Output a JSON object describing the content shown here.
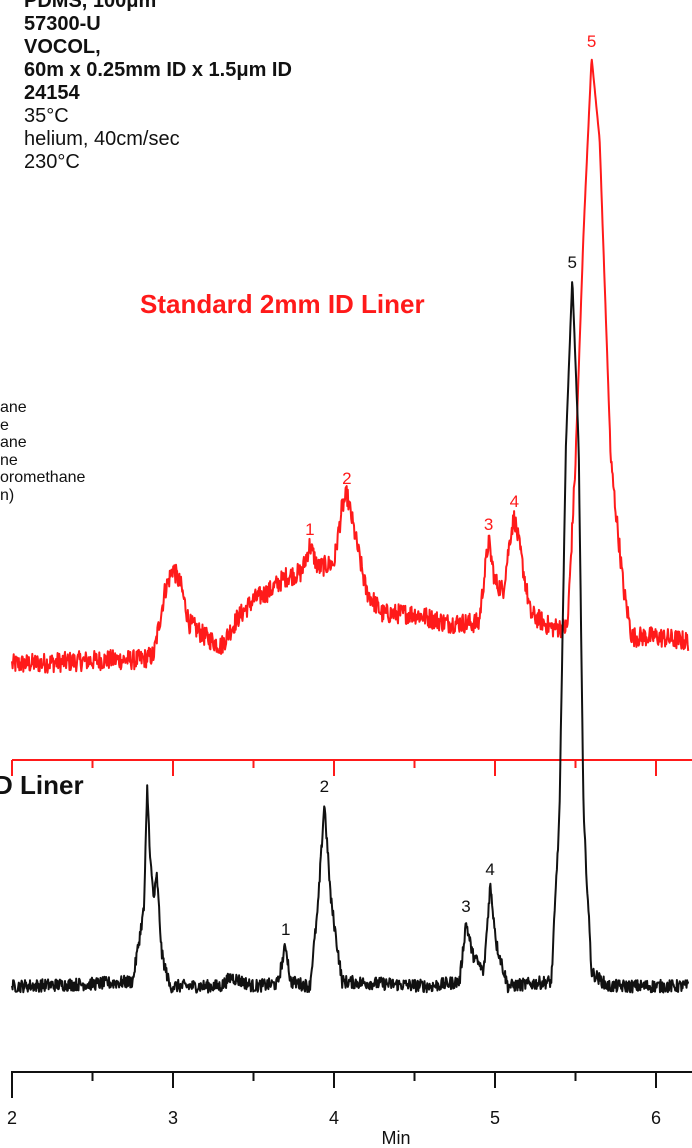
{
  "header": {
    "line0": "PDMS, 100μm",
    "line1": "57300-U",
    "line2": "VOCOL,",
    "line3": "60m x 0.25mm ID x 1.5μm ID",
    "line4": "24154",
    "line5": "35°C",
    "line6": "helium, 40cm/sec",
    "line7": "230°C"
  },
  "legend": {
    "line1": "ane",
    "line2": "e",
    "line3": "ane",
    "line4": "ne",
    "line5": "oromethane",
    "line6": "n)"
  },
  "labels": {
    "red_trace": "Standard 2mm ID Liner",
    "black_trace": "D Liner"
  },
  "colors": {
    "red": "#ff1a1a",
    "black": "#111111"
  },
  "chart_data": {
    "type": "line",
    "xlabel": "Min",
    "ylabel": "",
    "xlim": [
      2,
      6.2
    ],
    "x_ticks": [
      2,
      3,
      4,
      5,
      6
    ],
    "series": [
      {
        "color": "#ff1a1a",
        "points": [
          [
            2.0,
            0.06
          ],
          [
            2.3,
            0.065
          ],
          [
            2.6,
            0.07
          ],
          [
            2.8,
            0.07
          ],
          [
            2.88,
            0.08
          ],
          [
            2.95,
            0.22
          ],
          [
            3.0,
            0.27
          ],
          [
            3.05,
            0.23
          ],
          [
            3.1,
            0.15
          ],
          [
            3.2,
            0.12
          ],
          [
            3.3,
            0.1
          ],
          [
            3.4,
            0.16
          ],
          [
            3.5,
            0.2
          ],
          [
            3.6,
            0.22
          ],
          [
            3.7,
            0.25
          ],
          [
            3.8,
            0.26
          ],
          [
            3.85,
            0.32
          ],
          [
            3.9,
            0.27
          ],
          [
            4.0,
            0.28
          ],
          [
            4.05,
            0.4
          ],
          [
            4.08,
            0.43
          ],
          [
            4.12,
            0.36
          ],
          [
            4.2,
            0.22
          ],
          [
            4.3,
            0.17
          ],
          [
            4.5,
            0.17
          ],
          [
            4.7,
            0.15
          ],
          [
            4.9,
            0.15
          ],
          [
            4.96,
            0.33
          ],
          [
            5.0,
            0.24
          ],
          [
            5.05,
            0.22
          ],
          [
            5.1,
            0.35
          ],
          [
            5.12,
            0.38
          ],
          [
            5.16,
            0.3
          ],
          [
            5.22,
            0.17
          ],
          [
            5.35,
            0.14
          ],
          [
            5.45,
            0.14
          ],
          [
            5.5,
            0.5
          ],
          [
            5.55,
            1.0
          ],
          [
            5.6,
            1.38
          ],
          [
            5.65,
            1.2
          ],
          [
            5.72,
            0.5
          ],
          [
            5.8,
            0.22
          ],
          [
            5.85,
            0.12
          ],
          [
            6.0,
            0.12
          ],
          [
            6.2,
            0.11
          ]
        ]
      },
      {
        "color": "#111111",
        "points": [
          [
            2.0,
            0.03
          ],
          [
            2.5,
            0.035
          ],
          [
            2.75,
            0.04
          ],
          [
            2.82,
            0.2
          ],
          [
            2.84,
            0.46
          ],
          [
            2.86,
            0.3
          ],
          [
            2.88,
            0.22
          ],
          [
            2.9,
            0.27
          ],
          [
            2.93,
            0.1
          ],
          [
            2.98,
            0.03
          ],
          [
            3.3,
            0.03
          ],
          [
            3.36,
            0.05
          ],
          [
            3.5,
            0.03
          ],
          [
            3.65,
            0.035
          ],
          [
            3.7,
            0.12
          ],
          [
            3.73,
            0.04
          ],
          [
            3.85,
            0.03
          ],
          [
            3.9,
            0.2
          ],
          [
            3.94,
            0.43
          ],
          [
            3.98,
            0.22
          ],
          [
            4.05,
            0.04
          ],
          [
            4.6,
            0.03
          ],
          [
            4.78,
            0.04
          ],
          [
            4.82,
            0.17
          ],
          [
            4.86,
            0.1
          ],
          [
            4.93,
            0.06
          ],
          [
            4.97,
            0.25
          ],
          [
            5.01,
            0.12
          ],
          [
            5.08,
            0.03
          ],
          [
            5.35,
            0.04
          ],
          [
            5.4,
            0.4
          ],
          [
            5.44,
            1.2
          ],
          [
            5.48,
            1.57
          ],
          [
            5.52,
            1.2
          ],
          [
            5.55,
            0.4
          ],
          [
            5.6,
            0.06
          ],
          [
            5.7,
            0.03
          ],
          [
            6.2,
            0.03
          ]
        ]
      }
    ],
    "peak_labels": [
      {
        "series": 0,
        "label": "1",
        "x": 3.85,
        "y": 0.32
      },
      {
        "series": 0,
        "label": "2",
        "x": 4.08,
        "y": 0.43
      },
      {
        "series": 0,
        "label": "3",
        "x": 4.96,
        "y": 0.33
      },
      {
        "series": 0,
        "label": "4",
        "x": 5.12,
        "y": 0.38
      },
      {
        "series": 0,
        "label": "5",
        "x": 5.6,
        "y": 1.38
      },
      {
        "series": 1,
        "label": "1",
        "x": 3.7,
        "y": 0.12
      },
      {
        "series": 1,
        "label": "2",
        "x": 3.94,
        "y": 0.43
      },
      {
        "series": 1,
        "label": "3",
        "x": 4.82,
        "y": 0.17
      },
      {
        "series": 1,
        "label": "4",
        "x": 4.97,
        "y": 0.25
      },
      {
        "series": 1,
        "label": "5",
        "x": 5.48,
        "y": 1.57
      }
    ]
  }
}
